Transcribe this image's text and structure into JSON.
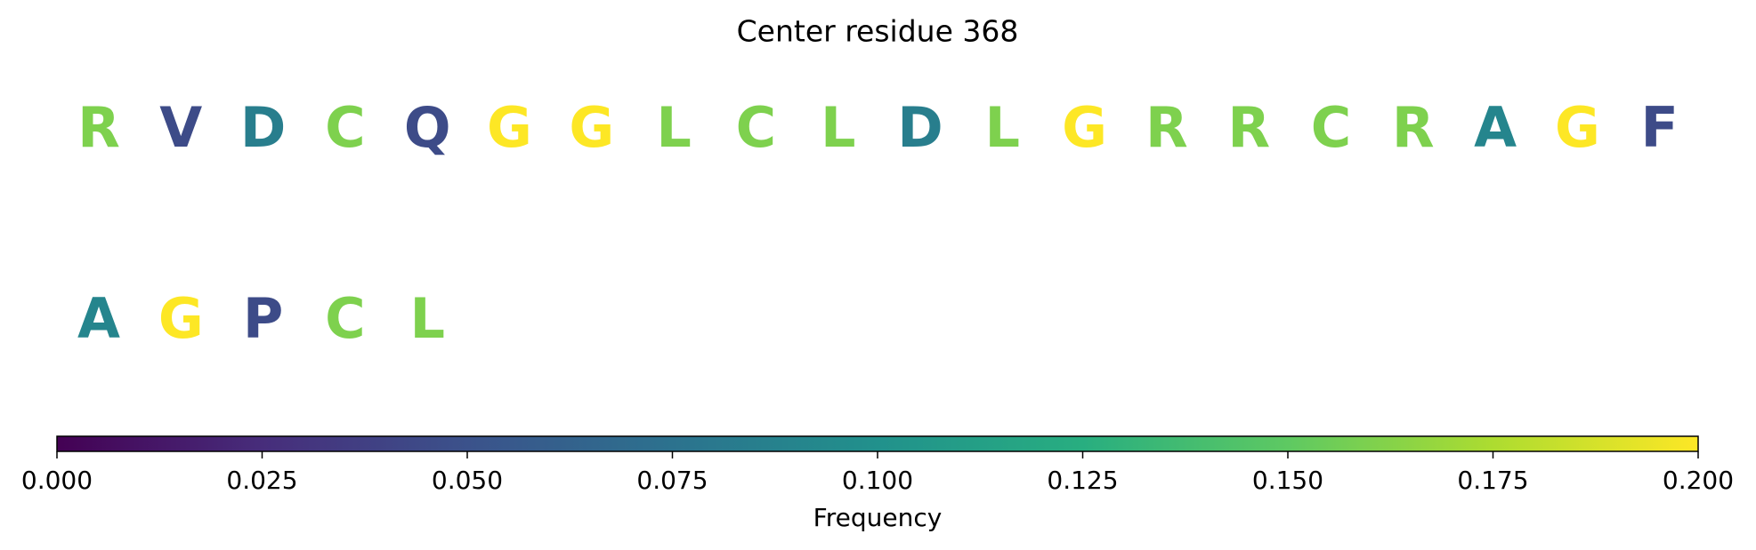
{
  "chart_data": {
    "type": "logo",
    "title": "Center residue 368",
    "letters": [
      "R",
      "V",
      "D",
      "C",
      "Q",
      "G",
      "G",
      "L",
      "C",
      "L",
      "D",
      "L",
      "G",
      "R",
      "R",
      "C",
      "R",
      "A",
      "G",
      "F",
      "A",
      "G",
      "P",
      "C",
      "L"
    ],
    "values": [
      0.16,
      0.045,
      0.085,
      0.16,
      0.045,
      0.2,
      0.2,
      0.16,
      0.16,
      0.16,
      0.085,
      0.16,
      0.2,
      0.16,
      0.16,
      0.16,
      0.16,
      0.09,
      0.2,
      0.045,
      0.09,
      0.2,
      0.045,
      0.16,
      0.16
    ],
    "colormap": "viridis",
    "xlim": [
      0,
      0.2
    ],
    "xticks": [
      {
        "value": 0,
        "label": "0.000"
      },
      {
        "value": 0.025,
        "label": "0.025"
      },
      {
        "value": 0.05,
        "label": "0.050"
      },
      {
        "value": 0.075,
        "label": "0.075"
      },
      {
        "value": 0.1,
        "label": "0.100"
      },
      {
        "value": 0.125,
        "label": "0.125"
      },
      {
        "value": 0.15,
        "label": "0.150"
      },
      {
        "value": 0.175,
        "label": "0.175"
      },
      {
        "value": 0.2,
        "label": "0.200"
      }
    ],
    "xlabel": "Frequency"
  }
}
